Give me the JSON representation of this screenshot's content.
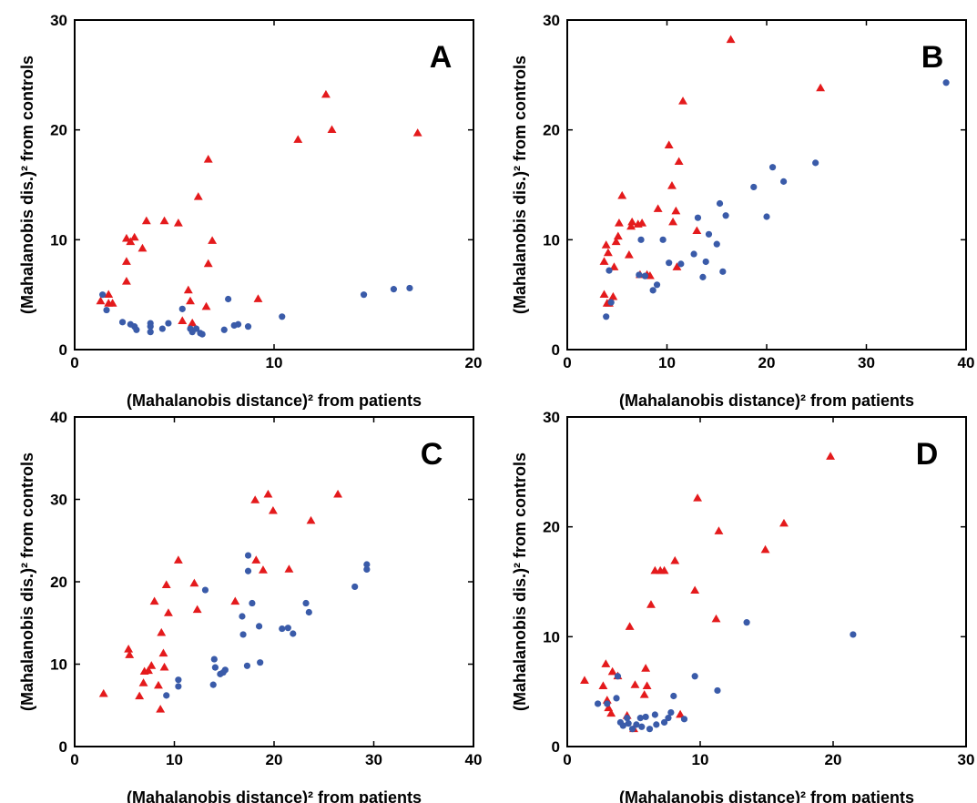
{
  "colors": {
    "patients": "#e41a1c",
    "controls": "#3a5ba9"
  },
  "chart_data": [
    {
      "type": "scatter",
      "panel_label": "A",
      "xlabel": "(Mahalanobis distance)² from patients",
      "ylabel": "(Mahalanobis dis.)² from controls",
      "xlim": [
        0,
        20
      ],
      "ylim": [
        0,
        30
      ],
      "xticks": [
        0,
        10,
        20
      ],
      "yticks": [
        0,
        10,
        20,
        30
      ],
      "grid": false,
      "legend": "none",
      "series": [
        {
          "marker": "triangle",
          "color": "#e41a1c",
          "points": [
            [
              1.3,
              4.4
            ],
            [
              1.7,
              5.0
            ],
            [
              1.7,
              4.2
            ],
            [
              1.9,
              4.2
            ],
            [
              2.6,
              6.2
            ],
            [
              2.6,
              8.0
            ],
            [
              2.6,
              10.1
            ],
            [
              2.8,
              9.8
            ],
            [
              3.0,
              10.2
            ],
            [
              3.4,
              9.2
            ],
            [
              3.6,
              11.7
            ],
            [
              4.5,
              11.7
            ],
            [
              5.2,
              11.5
            ],
            [
              5.4,
              2.6
            ],
            [
              5.7,
              5.4
            ],
            [
              5.8,
              4.4
            ],
            [
              5.9,
              2.4
            ],
            [
              6.2,
              13.9
            ],
            [
              6.6,
              3.9
            ],
            [
              6.7,
              7.8
            ],
            [
              6.7,
              17.3
            ],
            [
              6.9,
              9.9
            ],
            [
              9.2,
              4.6
            ],
            [
              11.2,
              19.1
            ],
            [
              12.6,
              23.2
            ],
            [
              12.9,
              20.0
            ],
            [
              17.2,
              19.7
            ]
          ]
        },
        {
          "marker": "circle",
          "color": "#3a5ba9",
          "points": [
            [
              1.4,
              5.0
            ],
            [
              1.6,
              3.6
            ],
            [
              2.4,
              2.5
            ],
            [
              2.8,
              2.3
            ],
            [
              3.0,
              2.1
            ],
            [
              3.1,
              1.8
            ],
            [
              3.8,
              2.4
            ],
            [
              3.8,
              2.1
            ],
            [
              3.8,
              1.6
            ],
            [
              4.4,
              1.9
            ],
            [
              4.7,
              2.4
            ],
            [
              5.4,
              3.7
            ],
            [
              5.8,
              1.9
            ],
            [
              5.9,
              1.6
            ],
            [
              6.1,
              1.9
            ],
            [
              6.3,
              1.5
            ],
            [
              6.4,
              1.4
            ],
            [
              7.5,
              1.8
            ],
            [
              7.7,
              4.6
            ],
            [
              8.0,
              2.2
            ],
            [
              8.2,
              2.3
            ],
            [
              8.7,
              2.1
            ],
            [
              10.4,
              3.0
            ],
            [
              14.5,
              5.0
            ],
            [
              16.0,
              5.5
            ],
            [
              16.8,
              5.6
            ]
          ]
        }
      ]
    },
    {
      "type": "scatter",
      "panel_label": "B",
      "xlabel": "(Mahalanobis distance)² from patients",
      "ylabel": "(Mahalanobis dis.)² from controls",
      "xlim": [
        0,
        40
      ],
      "ylim": [
        0,
        30
      ],
      "xticks": [
        0,
        10,
        20,
        30,
        40
      ],
      "yticks": [
        0,
        10,
        20,
        30
      ],
      "grid": false,
      "legend": "none",
      "series": [
        {
          "marker": "triangle",
          "color": "#e41a1c",
          "points": [
            [
              3.7,
              5.0
            ],
            [
              3.7,
              8.0
            ],
            [
              3.9,
              9.5
            ],
            [
              4.0,
              4.2
            ],
            [
              4.1,
              8.8
            ],
            [
              4.2,
              4.2
            ],
            [
              4.6,
              4.8
            ],
            [
              4.7,
              7.5
            ],
            [
              4.9,
              9.8
            ],
            [
              5.1,
              10.3
            ],
            [
              5.2,
              11.5
            ],
            [
              5.5,
              14.0
            ],
            [
              6.2,
              8.6
            ],
            [
              6.4,
              11.2
            ],
            [
              6.5,
              11.6
            ],
            [
              7.1,
              11.4
            ],
            [
              7.3,
              6.8
            ],
            [
              7.5,
              11.5
            ],
            [
              8.0,
              6.8
            ],
            [
              8.3,
              6.7
            ],
            [
              9.1,
              12.8
            ],
            [
              10.2,
              18.6
            ],
            [
              10.5,
              14.9
            ],
            [
              10.6,
              11.6
            ],
            [
              10.9,
              12.6
            ],
            [
              11.0,
              7.5
            ],
            [
              11.2,
              17.1
            ],
            [
              11.6,
              22.6
            ],
            [
              13.0,
              10.8
            ],
            [
              16.4,
              28.2
            ],
            [
              25.4,
              23.8
            ]
          ]
        },
        {
          "marker": "circle",
          "color": "#3a5ba9",
          "points": [
            [
              3.9,
              3.0
            ],
            [
              4.2,
              7.2
            ],
            [
              4.4,
              4.3
            ],
            [
              7.2,
              6.8
            ],
            [
              7.4,
              10.0
            ],
            [
              7.8,
              6.7
            ],
            [
              8.6,
              5.4
            ],
            [
              9.0,
              5.9
            ],
            [
              9.6,
              10.0
            ],
            [
              10.2,
              7.9
            ],
            [
              11.4,
              7.8
            ],
            [
              12.7,
              8.7
            ],
            [
              13.1,
              12.0
            ],
            [
              13.6,
              6.6
            ],
            [
              13.9,
              8.0
            ],
            [
              14.2,
              10.5
            ],
            [
              15.0,
              9.6
            ],
            [
              15.3,
              13.3
            ],
            [
              15.6,
              7.1
            ],
            [
              15.9,
              12.2
            ],
            [
              18.7,
              14.8
            ],
            [
              20.0,
              12.1
            ],
            [
              20.6,
              16.6
            ],
            [
              21.7,
              15.3
            ],
            [
              24.9,
              17.0
            ],
            [
              38.0,
              24.3
            ]
          ]
        }
      ]
    },
    {
      "type": "scatter",
      "panel_label": "C",
      "xlabel": "(Mahalanobis distance)² from patients",
      "ylabel": "(Mahalanobis dis.)² from controls",
      "xlim": [
        0,
        40
      ],
      "ylim": [
        0,
        40
      ],
      "xticks": [
        0,
        10,
        20,
        30,
        40
      ],
      "yticks": [
        0,
        10,
        20,
        30,
        40
      ],
      "grid": false,
      "legend": "none",
      "series": [
        {
          "marker": "triangle",
          "color": "#e41a1c",
          "points": [
            [
              2.9,
              6.4
            ],
            [
              5.4,
              11.8
            ],
            [
              5.5,
              11.1
            ],
            [
              6.5,
              6.1
            ],
            [
              6.9,
              7.7
            ],
            [
              7.0,
              9.1
            ],
            [
              7.4,
              9.2
            ],
            [
              7.7,
              9.8
            ],
            [
              8.0,
              17.6
            ],
            [
              8.4,
              7.4
            ],
            [
              8.6,
              4.5
            ],
            [
              8.7,
              13.8
            ],
            [
              8.9,
              11.3
            ],
            [
              9.0,
              9.6
            ],
            [
              9.2,
              19.6
            ],
            [
              9.4,
              16.2
            ],
            [
              10.4,
              22.6
            ],
            [
              12.0,
              19.8
            ],
            [
              12.3,
              16.6
            ],
            [
              16.1,
              17.6
            ],
            [
              18.1,
              29.9
            ],
            [
              18.2,
              22.6
            ],
            [
              18.9,
              21.4
            ],
            [
              19.4,
              30.6
            ],
            [
              19.9,
              28.6
            ],
            [
              21.5,
              21.5
            ],
            [
              23.7,
              27.4
            ],
            [
              26.4,
              30.6
            ]
          ]
        },
        {
          "marker": "circle",
          "color": "#3a5ba9",
          "points": [
            [
              9.2,
              6.2
            ],
            [
              10.4,
              8.1
            ],
            [
              10.4,
              7.3
            ],
            [
              13.1,
              19.0
            ],
            [
              13.9,
              7.5
            ],
            [
              14.0,
              10.6
            ],
            [
              14.1,
              9.6
            ],
            [
              14.6,
              8.8
            ],
            [
              14.9,
              9.0
            ],
            [
              15.1,
              9.3
            ],
            [
              16.8,
              15.8
            ],
            [
              16.9,
              13.6
            ],
            [
              17.3,
              9.8
            ],
            [
              17.4,
              23.2
            ],
            [
              17.4,
              21.3
            ],
            [
              17.8,
              17.4
            ],
            [
              18.5,
              14.6
            ],
            [
              18.6,
              10.2
            ],
            [
              20.8,
              14.3
            ],
            [
              21.4,
              14.4
            ],
            [
              21.9,
              13.7
            ],
            [
              23.2,
              17.4
            ],
            [
              23.5,
              16.3
            ],
            [
              28.1,
              19.4
            ],
            [
              29.3,
              22.1
            ],
            [
              29.3,
              21.5
            ]
          ]
        }
      ]
    },
    {
      "type": "scatter",
      "panel_label": "D",
      "xlabel": "(Mahalanobis distance)² from patients",
      "ylabel": "(Mahalanobis dis.)² from controls",
      "xlim": [
        0,
        30
      ],
      "ylim": [
        0,
        30
      ],
      "xticks": [
        0,
        10,
        20,
        30
      ],
      "yticks": [
        0,
        10,
        20,
        30
      ],
      "grid": false,
      "legend": "none",
      "series": [
        {
          "marker": "triangle",
          "color": "#e41a1c",
          "points": [
            [
              1.3,
              6.0
            ],
            [
              2.7,
              5.5
            ],
            [
              2.9,
              7.5
            ],
            [
              3.0,
              4.2
            ],
            [
              3.1,
              3.5
            ],
            [
              3.3,
              3.0
            ],
            [
              3.4,
              6.8
            ],
            [
              3.8,
              6.4
            ],
            [
              4.5,
              2.8
            ],
            [
              4.7,
              10.9
            ],
            [
              5.0,
              1.6
            ],
            [
              5.1,
              5.6
            ],
            [
              5.8,
              4.7
            ],
            [
              5.9,
              7.1
            ],
            [
              6.0,
              5.5
            ],
            [
              6.3,
              12.9
            ],
            [
              6.6,
              16.0
            ],
            [
              7.0,
              16.0
            ],
            [
              7.3,
              16.0
            ],
            [
              8.1,
              16.9
            ],
            [
              8.5,
              2.9
            ],
            [
              9.6,
              14.2
            ],
            [
              9.8,
              22.6
            ],
            [
              11.2,
              11.6
            ],
            [
              11.4,
              19.6
            ],
            [
              14.9,
              17.9
            ],
            [
              16.3,
              20.3
            ],
            [
              19.8,
              26.4
            ]
          ]
        },
        {
          "marker": "circle",
          "color": "#3a5ba9",
          "points": [
            [
              2.3,
              3.9
            ],
            [
              3.0,
              3.9
            ],
            [
              3.7,
              4.4
            ],
            [
              3.8,
              6.4
            ],
            [
              4.0,
              2.2
            ],
            [
              4.2,
              1.9
            ],
            [
              4.5,
              2.6
            ],
            [
              4.6,
              2.1
            ],
            [
              4.9,
              1.6
            ],
            [
              5.2,
              2.0
            ],
            [
              5.5,
              2.6
            ],
            [
              5.6,
              1.8
            ],
            [
              5.9,
              2.7
            ],
            [
              6.2,
              1.6
            ],
            [
              6.6,
              2.9
            ],
            [
              6.7,
              2.0
            ],
            [
              7.3,
              2.2
            ],
            [
              7.6,
              2.6
            ],
            [
              7.8,
              3.1
            ],
            [
              8.0,
              4.6
            ],
            [
              8.8,
              2.5
            ],
            [
              9.6,
              6.4
            ],
            [
              11.3,
              5.1
            ],
            [
              13.5,
              11.3
            ],
            [
              21.5,
              10.2
            ]
          ]
        }
      ]
    }
  ]
}
